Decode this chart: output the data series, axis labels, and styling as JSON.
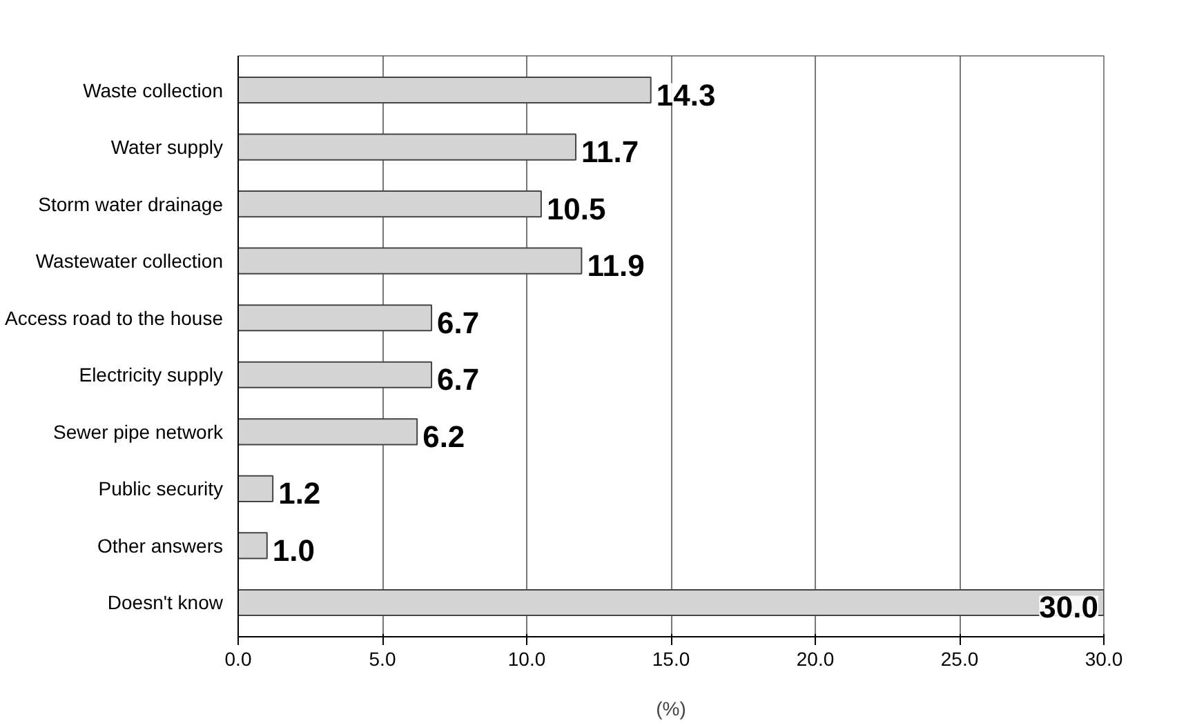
{
  "chart_data": {
    "type": "bar",
    "orientation": "horizontal",
    "categories": [
      "Waste collection",
      "Water supply",
      "Storm water drainage",
      "Wastewater collection",
      "Access road to the house",
      "Electricity supply",
      "Sewer pipe network",
      "Public security",
      "Other answers",
      "Doesn't know"
    ],
    "values": [
      14.3,
      11.7,
      10.5,
      11.9,
      6.7,
      6.7,
      6.2,
      1.2,
      1.0,
      30.0
    ],
    "value_labels": [
      "14.3",
      "11.7",
      "10.5",
      "11.9",
      "6.7",
      "6.7",
      "6.2",
      "1.2",
      "1.0",
      "30.0"
    ],
    "color": "#d4d4d4",
    "xlim": [
      0,
      30
    ],
    "xticks": [
      {
        "value": 0,
        "label": "0.0"
      },
      {
        "value": 5,
        "label": "5.0"
      },
      {
        "value": 10,
        "label": "10.0"
      },
      {
        "value": 15,
        "label": "15.0"
      },
      {
        "value": 20,
        "label": "20.0"
      },
      {
        "value": 25,
        "label": "25.0"
      },
      {
        "value": 30,
        "label": "30.0"
      }
    ],
    "xlabel": "(%)",
    "grid": "x"
  }
}
